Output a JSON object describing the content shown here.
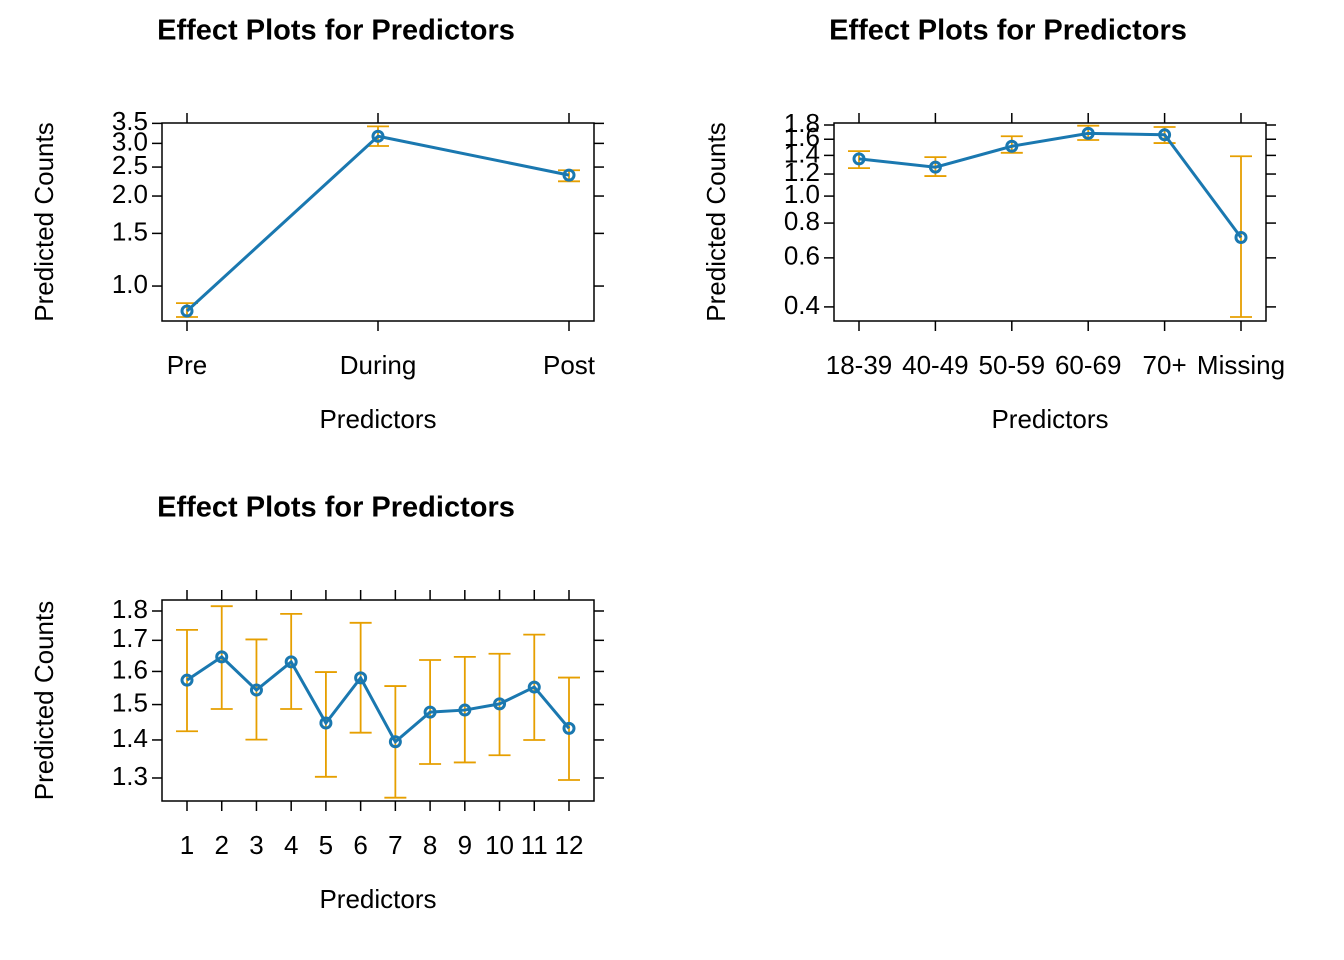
{
  "chart_data": [
    {
      "type": "line",
      "title": "Effect Plots for Predictors",
      "xlabel": "Predictors",
      "ylabel": "Predicted Counts",
      "categories": [
        "Pre",
        "During",
        "Post"
      ],
      "values": [
        0.825,
        3.17,
        2.35
      ],
      "lower": [
        0.788,
        2.94,
        2.24
      ],
      "upper": [
        0.877,
        3.42,
        2.44
      ],
      "color": "#1a78b0",
      "error_color": "#e69f00",
      "log_scale": true,
      "ylim": [
        0.764,
        3.51
      ],
      "yticks": [
        {
          "value": 1.0,
          "label": "1.0"
        },
        1.5,
        {
          "value": 2.0,
          "label": "2.0"
        },
        2.5,
        {
          "value": 3.0,
          "label": "3.0"
        },
        3.5
      ]
    },
    {
      "type": "line",
      "title": "Effect Plots for Predictors",
      "xlabel": "Predictors",
      "ylabel": "Predicted Counts",
      "categories": [
        "18-39",
        "40-49",
        "50-59",
        "60-69",
        "70+",
        "Missing"
      ],
      "values": [
        1.36,
        1.27,
        1.51,
        1.68,
        1.66,
        0.71
      ],
      "lower": [
        1.26,
        1.18,
        1.43,
        1.59,
        1.55,
        0.368
      ],
      "upper": [
        1.45,
        1.38,
        1.64,
        1.79,
        1.77,
        1.39
      ],
      "color": "#1a78b0",
      "error_color": "#e69f00",
      "log_scale": true,
      "ylim": [
        0.356,
        1.83
      ],
      "yticks": [
        0.4,
        0.6,
        0.8,
        {
          "value": 1.0,
          "label": "1.0"
        },
        1.2,
        1.4,
        1.6,
        1.8
      ]
    },
    {
      "type": "line",
      "title": "Effect Plots for Predictors",
      "xlabel": "Predictors",
      "ylabel": "Predicted Counts",
      "categories": [
        "1",
        "2",
        "3",
        "4",
        "5",
        "6",
        "7",
        "8",
        "9",
        "10",
        "11",
        "12"
      ],
      "values": [
        1.573,
        1.646,
        1.543,
        1.63,
        1.447,
        1.58,
        1.395,
        1.478,
        1.484,
        1.502,
        1.552,
        1.432
      ],
      "lower": [
        1.424,
        1.487,
        1.401,
        1.487,
        1.303,
        1.42,
        1.251,
        1.336,
        1.34,
        1.359,
        1.4,
        1.295
      ],
      "upper": [
        1.735,
        1.817,
        1.703,
        1.79,
        1.598,
        1.759,
        1.555,
        1.636,
        1.646,
        1.656,
        1.719,
        1.581
      ],
      "color": "#1a78b0",
      "error_color": "#e69f00",
      "log_scale": true,
      "ylim": [
        1.243,
        1.839
      ],
      "yticks": [
        1.3,
        1.4,
        1.5,
        1.6,
        1.7,
        1.8
      ]
    }
  ]
}
